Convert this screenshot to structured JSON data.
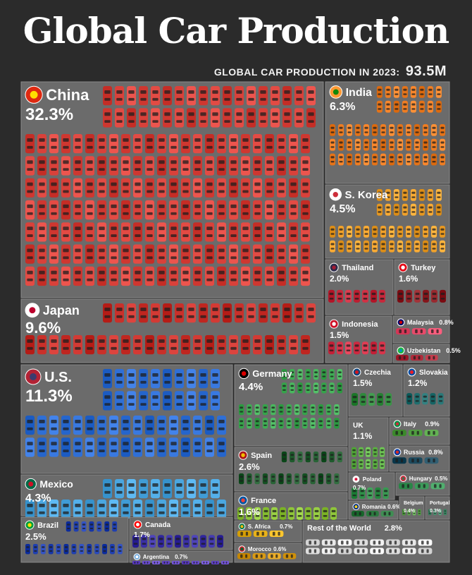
{
  "title": "Global Car Production",
  "subtitle": {
    "label": "GLOBAL CAR PRODUCTION IN 2023:",
    "total": "93.5M"
  },
  "chart_data": {
    "type": "treemap",
    "title": "Global Car Production",
    "total_label": "GLOBAL CAR PRODUCTION IN 2023: 93.5M",
    "unit": "% share of global car production",
    "items": [
      {
        "name": "China",
        "value": 32.3,
        "label": "32.3%",
        "color": "#d9413a"
      },
      {
        "name": "Japan",
        "value": 9.6,
        "label": "9.6%",
        "color": "#c9302a"
      },
      {
        "name": "India",
        "value": 6.3,
        "label": "6.3%",
        "color": "#ef7d22"
      },
      {
        "name": "S. Korea",
        "value": 4.5,
        "label": "4.5%",
        "color": "#f0a12a"
      },
      {
        "name": "Thailand",
        "value": 2.0,
        "label": "2.0%",
        "color": "#c7283b"
      },
      {
        "name": "Turkey",
        "value": 1.6,
        "label": "1.6%",
        "color": "#8f1f25"
      },
      {
        "name": "Indonesia",
        "value": 1.5,
        "label": "1.5%",
        "color": "#d7334a"
      },
      {
        "name": "Malaysia",
        "value": 0.8,
        "label": "0.8%",
        "color": "#e84a6a"
      },
      {
        "name": "Uzbekistan",
        "value": 0.5,
        "label": "0.5%",
        "color": "#b02a3a"
      },
      {
        "name": "U.S.",
        "value": 11.3,
        "label": "11.3%",
        "color": "#2f6fd6"
      },
      {
        "name": "Mexico",
        "value": 4.3,
        "label": "4.3%",
        "color": "#4aa6e0"
      },
      {
        "name": "Brazil",
        "value": 2.5,
        "label": "2.5%",
        "color": "#1f3fb0"
      },
      {
        "name": "Canada",
        "value": 1.7,
        "label": "1.7%",
        "color": "#3a30a6"
      },
      {
        "name": "Argentina",
        "value": 0.7,
        "label": "0.7%",
        "color": "#6a4bd0"
      },
      {
        "name": "Germany",
        "value": 4.4,
        "label": "4.4%",
        "color": "#3fae54"
      },
      {
        "name": "Czechia",
        "value": 1.5,
        "label": "1.5%",
        "color": "#2f8a3c"
      },
      {
        "name": "Slovakia",
        "value": 1.2,
        "label": "1.2%",
        "color": "#1f6e6e"
      },
      {
        "name": "UK",
        "value": 1.1,
        "label": "1.1%",
        "color": "#63b84a"
      },
      {
        "name": "Italy",
        "value": 0.9,
        "label": "0.9%",
        "color": "#4f9e3f"
      },
      {
        "name": "Spain",
        "value": 2.6,
        "label": "2.6%",
        "color": "#1e5a2c"
      },
      {
        "name": "Russia",
        "value": 0.8,
        "label": "0.8%",
        "color": "#1c4a5e"
      },
      {
        "name": "France",
        "value": 1.6,
        "label": "1.6%",
        "color": "#8fc63a"
      },
      {
        "name": "Poland",
        "value": 0.7,
        "label": "0.7%",
        "color": "#2e8f47"
      },
      {
        "name": "Hungary",
        "value": 0.5,
        "label": "0.5%",
        "color": "#3c9a5a"
      },
      {
        "name": "Romania",
        "value": 0.6,
        "label": "0.6%",
        "color": "#2b7a3f"
      },
      {
        "name": "Belgium",
        "value": 0.4,
        "label": "0.4%",
        "color": "#5aa84a"
      },
      {
        "name": "Portugal",
        "value": 0.3,
        "label": "0.3%",
        "color": "#3f8f6a"
      },
      {
        "name": "S. Africa",
        "value": 0.7,
        "label": "0.7%",
        "color": "#e8b21a"
      },
      {
        "name": "Morocco",
        "value": 0.6,
        "label": "0.6%",
        "color": "#d99a14"
      },
      {
        "name": "Rest of the World",
        "value": 2.8,
        "label": "2.8%",
        "color": "#e8e8e8"
      }
    ]
  },
  "colors": {
    "background": "#2b2b2b",
    "tile_background": "#6b6b6b",
    "text": "#ffffff"
  }
}
